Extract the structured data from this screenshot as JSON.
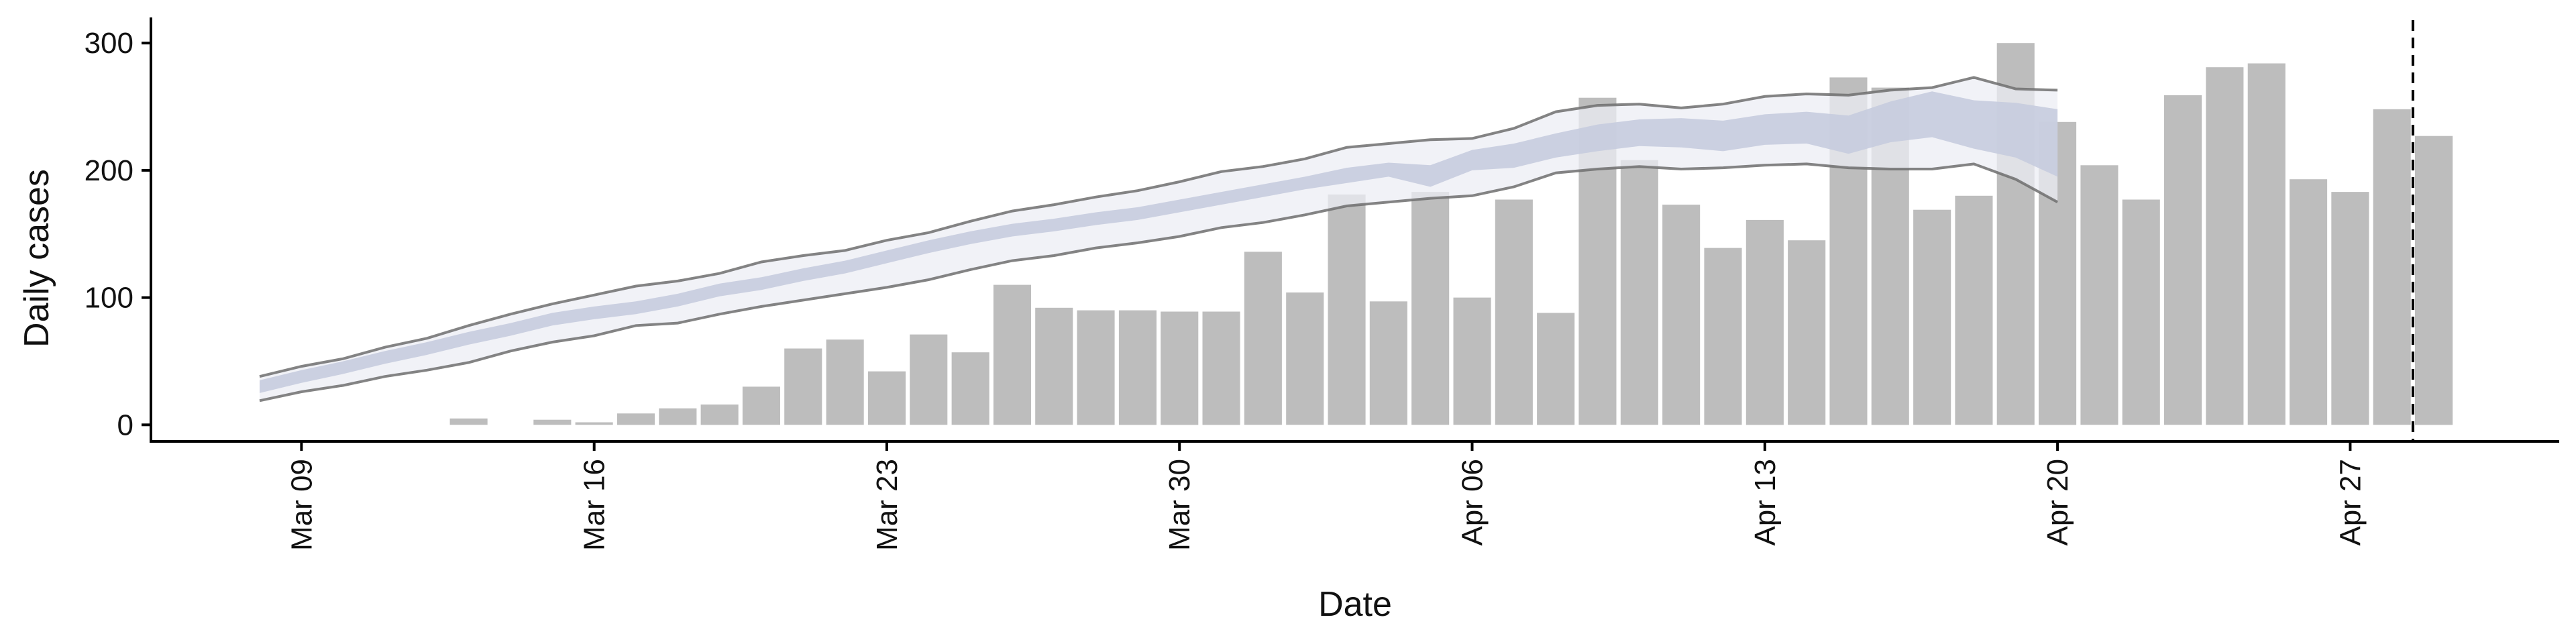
{
  "chart_data": {
    "type": "bar",
    "xlabel": "Date",
    "ylabel": "Daily cases",
    "ylim": [
      -13,
      318
    ],
    "y_ticks": [
      0,
      100,
      200,
      300
    ],
    "x_ticks": [
      {
        "label": "Mar 09",
        "day": 0
      },
      {
        "label": "Mar 16",
        "day": 7
      },
      {
        "label": "Mar 23",
        "day": 14
      },
      {
        "label": "Mar 30",
        "day": 21
      },
      {
        "label": "Apr 06",
        "day": 28
      },
      {
        "label": "Apr 13",
        "day": 35
      },
      {
        "label": "Apr 20",
        "day": 42
      },
      {
        "label": "Apr 27",
        "day": 49
      }
    ],
    "xlim_days": [
      -3.6,
      54
    ],
    "bars": {
      "name": "Reported cases",
      "start_day": -1,
      "values": [
        0,
        0,
        0,
        0,
        0,
        5,
        0,
        4,
        2,
        9,
        13,
        16,
        30,
        60,
        67,
        42,
        71,
        57,
        110,
        92,
        90,
        90,
        89,
        89,
        136,
        104,
        181,
        97,
        183,
        100,
        177,
        88,
        257,
        208,
        173,
        139,
        161,
        145,
        273,
        265,
        169,
        180,
        300,
        238,
        204,
        177,
        259,
        281,
        284,
        193,
        183,
        248,
        227
      ],
      "color": "#bdbdbd"
    },
    "estimate": {
      "start_day": -1,
      "median": [
        30,
        38,
        45,
        53,
        60,
        68,
        75,
        83,
        88,
        92,
        98,
        106,
        111,
        118,
        124,
        132,
        140,
        147,
        153,
        157,
        162,
        166,
        172,
        178,
        184,
        190,
        196,
        200,
        196,
        208,
        212,
        220,
        226,
        229,
        230,
        227,
        232,
        233,
        228,
        238,
        245,
        236,
        232,
        222
      ],
      "inner_lower": [
        25,
        33,
        40,
        48,
        55,
        63,
        70,
        78,
        83,
        87,
        93,
        101,
        106,
        113,
        119,
        127,
        135,
        142,
        148,
        152,
        157,
        161,
        167,
        173,
        179,
        185,
        190,
        195,
        187,
        200,
        202,
        210,
        215,
        219,
        218,
        215,
        220,
        221,
        213,
        222,
        226,
        217,
        210,
        195
      ],
      "inner_upper": [
        35,
        43,
        50,
        58,
        65,
        73,
        80,
        88,
        93,
        97,
        103,
        111,
        116,
        123,
        129,
        137,
        145,
        152,
        158,
        162,
        167,
        171,
        177,
        183,
        189,
        195,
        202,
        206,
        204,
        216,
        221,
        229,
        236,
        240,
        241,
        239,
        244,
        246,
        243,
        254,
        262,
        255,
        253,
        248
      ],
      "outer_lower": [
        19,
        26,
        31,
        38,
        43,
        49,
        58,
        65,
        70,
        78,
        80,
        87,
        93,
        98,
        103,
        108,
        114,
        122,
        129,
        133,
        139,
        143,
        148,
        155,
        159,
        165,
        172,
        175,
        178,
        180,
        187,
        198,
        201,
        203,
        201,
        202,
        204,
        205,
        202,
        201,
        201,
        205,
        193,
        175
      ],
      "outer_upper": [
        38,
        46,
        52,
        61,
        68,
        78,
        87,
        95,
        102,
        109,
        113,
        119,
        128,
        133,
        137,
        145,
        151,
        160,
        168,
        173,
        179,
        184,
        191,
        199,
        203,
        209,
        218,
        221,
        224,
        225,
        233,
        246,
        251,
        252,
        249,
        252,
        258,
        260,
        259,
        263,
        265,
        273,
        264,
        263
      ],
      "band_outer_color": "#eceef4",
      "band_inner_color": "#c4cadd",
      "line_color": "#6e6e6e"
    },
    "vline": {
      "day": 50.5,
      "style": "dashed",
      "color": "#000000"
    },
    "grid": false,
    "legend": "none"
  }
}
